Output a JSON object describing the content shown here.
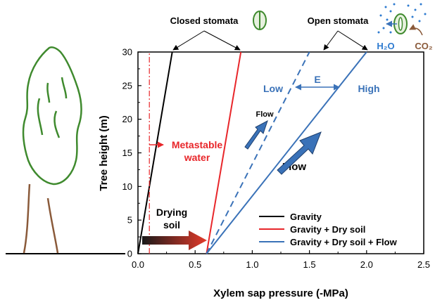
{
  "chart_data": {
    "type": "line",
    "title": "",
    "xlabel": "Xylem sap pressure (-MPa)",
    "ylabel": "Tree height (m)",
    "xlim": [
      0,
      2.5
    ],
    "ylim": [
      0,
      30
    ],
    "x_ticks": [
      "0.0",
      "0.5",
      "1.0",
      "1.5",
      "2.0",
      "2.5"
    ],
    "y_ticks": [
      "0",
      "5",
      "10",
      "15",
      "20",
      "25",
      "30"
    ],
    "grid": false,
    "legend_position": "bottom-right",
    "series": [
      {
        "name": "Gravity",
        "color": "#000000",
        "style": "solid",
        "x": [
          0.0,
          0.3
        ],
        "y": [
          0,
          30
        ]
      },
      {
        "name": "Gravity + Dry soil",
        "color": "#e8262a",
        "style": "solid",
        "x": [
          0.6,
          0.9
        ],
        "y": [
          0,
          30
        ]
      },
      {
        "name": "Gravity + Dry soil + Flow",
        "color": "#3a72b8",
        "style": "solid",
        "x": [
          0.6,
          2.0
        ],
        "y": [
          0,
          30
        ]
      },
      {
        "name": "",
        "color": "#3a72b8",
        "style": "dashed",
        "x": [
          0.6,
          1.5
        ],
        "y": [
          0,
          30
        ]
      },
      {
        "name": "",
        "color": "#e8262a",
        "style": "dashdot",
        "x": [
          0.1,
          0.1
        ],
        "y": [
          0,
          30
        ]
      }
    ],
    "annotations": {
      "closed_stomata": "Closed stomata",
      "open_stomata": "Open stomata",
      "h2o": "H₂O",
      "co2": "CO₂",
      "low": "Low",
      "high": "High",
      "e": "E",
      "flow_small": "Flow",
      "flow_large": "Flow",
      "metastable_line1": "Metastable",
      "metastable_line2": "water",
      "drying_line1": "Drying",
      "drying_line2": "soil"
    },
    "colors": {
      "black": "#000000",
      "red": "#e8262a",
      "blue": "#3a72b8",
      "tree_green": "#3f8a2e",
      "trunk_brown": "#8a5a3a",
      "co2_brown": "#8a5a3a",
      "h2o_blue": "#2e7bd0"
    }
  }
}
